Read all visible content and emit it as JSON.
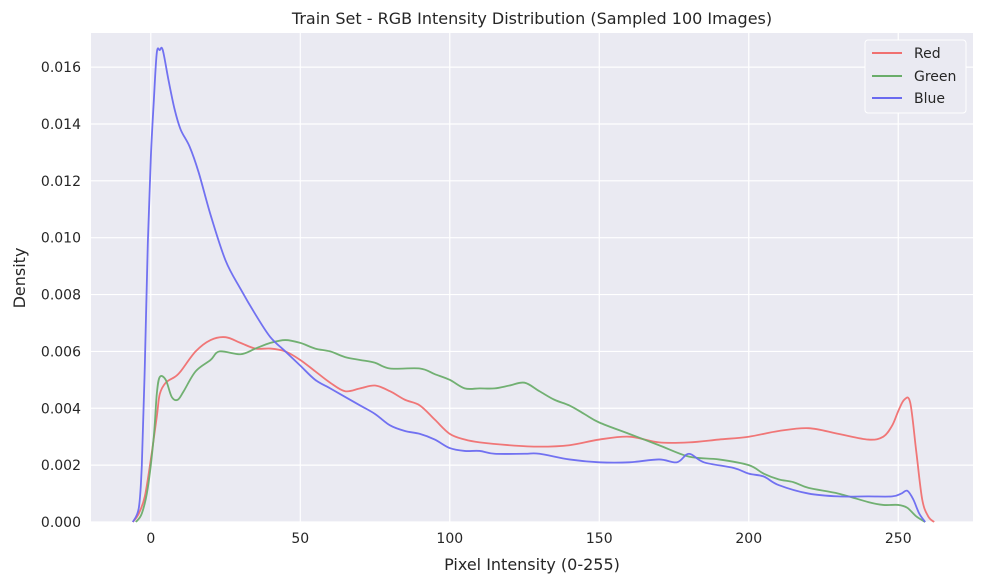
{
  "chart_data": {
    "type": "line",
    "title": "Train Set - RGB Intensity Distribution (Sampled 100 Images)",
    "xlabel": "Pixel Intensity (0-255)",
    "ylabel": "Density",
    "xlim": [
      -20,
      275
    ],
    "ylim": [
      0,
      0.0172
    ],
    "xticks": [
      0,
      50,
      100,
      150,
      200,
      250
    ],
    "xtick_labels": [
      "0",
      "50",
      "100",
      "150",
      "200",
      "250"
    ],
    "yticks": [
      0,
      0.002,
      0.004,
      0.006,
      0.008,
      0.01,
      0.012,
      0.014,
      0.016
    ],
    "ytick_labels": [
      "0.000",
      "0.002",
      "0.004",
      "0.006",
      "0.008",
      "0.010",
      "0.012",
      "0.014",
      "0.016"
    ],
    "grid": true,
    "legend_position": "top-right",
    "colors": {
      "background": "#eaeaf2",
      "grid": "#ffffff"
    },
    "series": [
      {
        "name": "Red",
        "color": "#f07070",
        "points": [
          [
            -6,
            0
          ],
          [
            -4,
            0.0003
          ],
          [
            -2,
            0.0009
          ],
          [
            0,
            0.0022
          ],
          [
            2,
            0.0037
          ],
          [
            3,
            0.0045
          ],
          [
            5,
            0.0049
          ],
          [
            8,
            0.0051
          ],
          [
            10,
            0.0053
          ],
          [
            15,
            0.006
          ],
          [
            20,
            0.0064
          ],
          [
            25,
            0.0065
          ],
          [
            30,
            0.0063
          ],
          [
            35,
            0.0061
          ],
          [
            40,
            0.0061
          ],
          [
            45,
            0.006
          ],
          [
            50,
            0.0057
          ],
          [
            55,
            0.0053
          ],
          [
            60,
            0.0049
          ],
          [
            65,
            0.0046
          ],
          [
            70,
            0.0047
          ],
          [
            75,
            0.0048
          ],
          [
            80,
            0.0046
          ],
          [
            85,
            0.0043
          ],
          [
            90,
            0.0041
          ],
          [
            95,
            0.0036
          ],
          [
            100,
            0.0031
          ],
          [
            105,
            0.0029
          ],
          [
            110,
            0.0028
          ],
          [
            120,
            0.0027
          ],
          [
            130,
            0.00265
          ],
          [
            140,
            0.0027
          ],
          [
            150,
            0.0029
          ],
          [
            160,
            0.003
          ],
          [
            170,
            0.0028
          ],
          [
            180,
            0.0028
          ],
          [
            190,
            0.0029
          ],
          [
            200,
            0.003
          ],
          [
            210,
            0.0032
          ],
          [
            220,
            0.0033
          ],
          [
            230,
            0.0031
          ],
          [
            240,
            0.0029
          ],
          [
            245,
            0.003
          ],
          [
            248,
            0.0034
          ],
          [
            250,
            0.0039
          ],
          [
            252,
            0.0043
          ],
          [
            254,
            0.0042
          ],
          [
            256,
            0.0025
          ],
          [
            258,
            0.0008
          ],
          [
            260,
            0.0002
          ],
          [
            262,
            0
          ]
        ]
      },
      {
        "name": "Green",
        "color": "#6aad6a",
        "points": [
          [
            -5,
            0
          ],
          [
            -3,
            0.0003
          ],
          [
            -1,
            0.0012
          ],
          [
            1,
            0.003
          ],
          [
            2,
            0.0045
          ],
          [
            3,
            0.0051
          ],
          [
            5,
            0.005
          ],
          [
            7,
            0.0044
          ],
          [
            9,
            0.0043
          ],
          [
            11,
            0.0046
          ],
          [
            15,
            0.0053
          ],
          [
            20,
            0.0057
          ],
          [
            23,
            0.006
          ],
          [
            30,
            0.0059
          ],
          [
            35,
            0.0061
          ],
          [
            40,
            0.0063
          ],
          [
            45,
            0.0064
          ],
          [
            50,
            0.0063
          ],
          [
            55,
            0.0061
          ],
          [
            60,
            0.006
          ],
          [
            65,
            0.0058
          ],
          [
            70,
            0.0057
          ],
          [
            75,
            0.0056
          ],
          [
            80,
            0.0054
          ],
          [
            90,
            0.0054
          ],
          [
            95,
            0.0052
          ],
          [
            100,
            0.005
          ],
          [
            105,
            0.0047
          ],
          [
            110,
            0.0047
          ],
          [
            115,
            0.0047
          ],
          [
            120,
            0.0048
          ],
          [
            125,
            0.0049
          ],
          [
            130,
            0.0046
          ],
          [
            135,
            0.0043
          ],
          [
            140,
            0.0041
          ],
          [
            145,
            0.0038
          ],
          [
            150,
            0.0035
          ],
          [
            160,
            0.0031
          ],
          [
            170,
            0.0027
          ],
          [
            180,
            0.0023
          ],
          [
            190,
            0.0022
          ],
          [
            200,
            0.002
          ],
          [
            205,
            0.0017
          ],
          [
            210,
            0.0015
          ],
          [
            215,
            0.0014
          ],
          [
            220,
            0.0012
          ],
          [
            230,
            0.001
          ],
          [
            240,
            0.0007
          ],
          [
            245,
            0.0006
          ],
          [
            250,
            0.0006
          ],
          [
            253,
            0.0005
          ],
          [
            256,
            0.0002
          ],
          [
            259,
            0
          ]
        ]
      },
      {
        "name": "Blue",
        "color": "#6a6af0",
        "points": [
          [
            -6,
            0
          ],
          [
            -4,
            0.0005
          ],
          [
            -3,
            0.002
          ],
          [
            -2,
            0.0055
          ],
          [
            -1,
            0.0098
          ],
          [
            0,
            0.0128
          ],
          [
            1,
            0.0148
          ],
          [
            2,
            0.0165
          ],
          [
            3,
            0.0166
          ],
          [
            4,
            0.0166
          ],
          [
            6,
            0.0155
          ],
          [
            8,
            0.0145
          ],
          [
            10,
            0.0138
          ],
          [
            13,
            0.0132
          ],
          [
            16,
            0.0123
          ],
          [
            20,
            0.0108
          ],
          [
            25,
            0.0092
          ],
          [
            30,
            0.0082
          ],
          [
            35,
            0.0073
          ],
          [
            40,
            0.0065
          ],
          [
            45,
            0.006
          ],
          [
            50,
            0.0055
          ],
          [
            55,
            0.005
          ],
          [
            60,
            0.0047
          ],
          [
            65,
            0.0044
          ],
          [
            70,
            0.0041
          ],
          [
            75,
            0.0038
          ],
          [
            80,
            0.0034
          ],
          [
            85,
            0.0032
          ],
          [
            90,
            0.0031
          ],
          [
            95,
            0.0029
          ],
          [
            100,
            0.0026
          ],
          [
            105,
            0.0025
          ],
          [
            110,
            0.0025
          ],
          [
            115,
            0.0024
          ],
          [
            125,
            0.0024
          ],
          [
            130,
            0.0024
          ],
          [
            140,
            0.0022
          ],
          [
            150,
            0.0021
          ],
          [
            160,
            0.0021
          ],
          [
            170,
            0.0022
          ],
          [
            176,
            0.0021
          ],
          [
            180,
            0.0024
          ],
          [
            185,
            0.0021
          ],
          [
            195,
            0.0019
          ],
          [
            200,
            0.0017
          ],
          [
            205,
            0.0016
          ],
          [
            210,
            0.0013
          ],
          [
            220,
            0.001
          ],
          [
            230,
            0.0009
          ],
          [
            240,
            0.0009
          ],
          [
            248,
            0.0009
          ],
          [
            251,
            0.001
          ],
          [
            253,
            0.0011
          ],
          [
            255,
            0.0008
          ],
          [
            257,
            0.0003
          ],
          [
            259,
            0
          ]
        ]
      }
    ]
  }
}
